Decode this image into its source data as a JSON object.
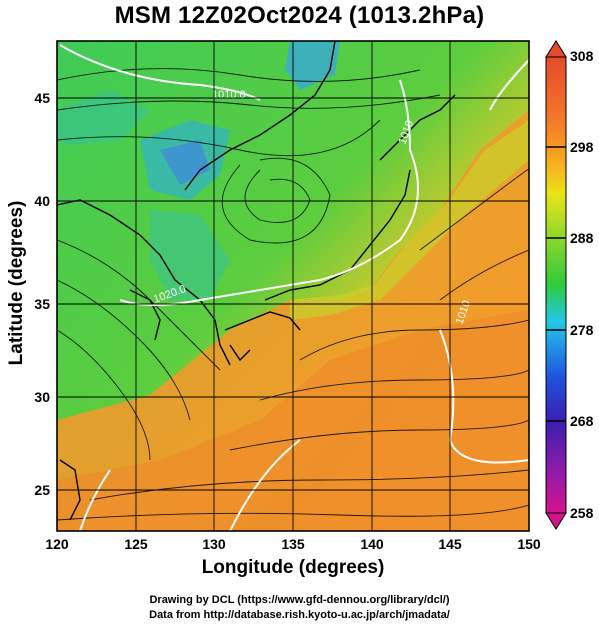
{
  "title": "MSM 12Z02Oct2024 (1013.2hPa)",
  "xlabel": "Longitude (degrees)",
  "ylabel": "Latitude  (degrees)",
  "x_ticks": [
    "120",
    "125",
    "130",
    "135",
    "140",
    "145",
    "150"
  ],
  "y_ticks": [
    "25",
    "30",
    "35",
    "40",
    "45"
  ],
  "colorbar": {
    "labels": [
      "308",
      "298",
      "288",
      "278",
      "268",
      "258"
    ],
    "range": [
      258,
      308
    ],
    "colors": [
      "#d4148c",
      "#3a1fb0",
      "#1f55e0",
      "#23c8e8",
      "#2ecb3c",
      "#8ad62a",
      "#e8e417",
      "#f7b21d",
      "#f4782a",
      "#e64a2a"
    ]
  },
  "contour_labels": [
    "1010.0",
    "1010",
    "1020.0",
    "1010"
  ],
  "credits": {
    "line1": "Drawing by DCL (https://www.gfd-dennou.org/library/dcl/)",
    "line2": "Data from http://database.rish.kyoto-u.ac.jp/arch/jmadata/"
  },
  "map": {
    "lon_range": [
      120,
      150
    ],
    "lat_range": [
      22.7,
      47.8
    ],
    "field": "temperature (K)",
    "colors": {
      "warm": "#f19a2c",
      "mid": "#4ec94b",
      "cool": "#35c39a",
      "cold": "#3da0d8",
      "land_outline": "#000000",
      "isobar": "#ffffff"
    }
  }
}
